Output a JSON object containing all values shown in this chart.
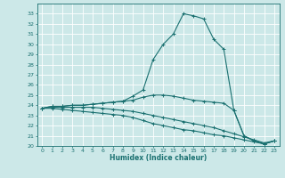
{
  "xlabel": "Humidex (Indice chaleur)",
  "bg_color": "#cce8e8",
  "grid_color": "#ffffff",
  "line_color": "#1a7070",
  "xlim": [
    -0.5,
    23.5
  ],
  "ylim": [
    20,
    34
  ],
  "yticks": [
    20,
    21,
    22,
    23,
    24,
    25,
    26,
    27,
    28,
    29,
    30,
    31,
    32,
    33
  ],
  "xticks": [
    0,
    1,
    2,
    3,
    4,
    5,
    6,
    7,
    8,
    9,
    10,
    11,
    12,
    13,
    14,
    15,
    16,
    17,
    18,
    19,
    20,
    21,
    22,
    23
  ],
  "series": [
    [
      23.7,
      23.9,
      23.9,
      24.0,
      24.0,
      24.1,
      24.2,
      24.3,
      24.4,
      24.9,
      25.5,
      28.5,
      30.0,
      31.0,
      33.0,
      32.8,
      32.5,
      30.5,
      29.5,
      23.5,
      21.0,
      20.5,
      20.2,
      20.5
    ],
    [
      23.7,
      23.9,
      23.9,
      24.0,
      24.0,
      24.1,
      24.2,
      24.3,
      24.4,
      24.5,
      24.8,
      25.0,
      25.0,
      24.9,
      24.7,
      24.5,
      24.4,
      24.3,
      24.2,
      23.5,
      21.0,
      20.5,
      20.2,
      20.5
    ],
    [
      23.7,
      23.8,
      23.8,
      23.8,
      23.8,
      23.8,
      23.7,
      23.6,
      23.5,
      23.4,
      23.2,
      23.0,
      22.8,
      22.6,
      22.4,
      22.2,
      22.0,
      21.8,
      21.5,
      21.2,
      20.9,
      20.6,
      20.3,
      20.5
    ],
    [
      23.7,
      23.7,
      23.6,
      23.5,
      23.4,
      23.3,
      23.2,
      23.1,
      23.0,
      22.8,
      22.5,
      22.2,
      22.0,
      21.8,
      21.6,
      21.5,
      21.3,
      21.1,
      21.0,
      20.8,
      20.6,
      20.4,
      20.2,
      20.5
    ]
  ]
}
